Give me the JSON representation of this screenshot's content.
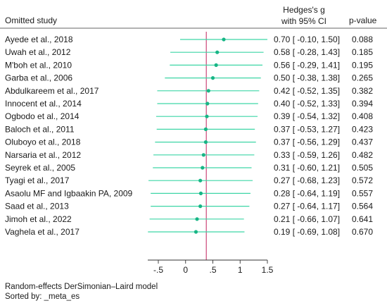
{
  "header": {
    "study_col": "Omitted study",
    "effect_col_line1": "Hedges's g",
    "effect_col_line2": "with 95% CI",
    "p_col": "p-value"
  },
  "footer": {
    "model": "Random-effects DerSimonian–Laird model",
    "sort": "Sorted by: _meta_es"
  },
  "colors": {
    "ci": "#3dd6a6",
    "point": "#17b585",
    "ref_line": "#cc4477",
    "axis": "#333333"
  },
  "chart_data": {
    "type": "forest",
    "title": "",
    "overall_line": 0.38,
    "xlim": [
      -0.7,
      1.5
    ],
    "xticks": [
      -0.5,
      0,
      0.5,
      1,
      1.5
    ],
    "xtick_labels": [
      "-.5",
      "0",
      ".5",
      "1",
      "1.5"
    ],
    "studies": [
      {
        "name": "Ayede et al., 2018",
        "es": 0.7,
        "lo": -0.1,
        "hi": 1.5,
        "text": "0.70 [ -0.10, 1.50]",
        "p": "0.088"
      },
      {
        "name": "Uwah et al., 2012",
        "es": 0.58,
        "lo": -0.28,
        "hi": 1.43,
        "text": "0.58 [ -0.28, 1.43]",
        "p": "0.185"
      },
      {
        "name": "M'boh et al., 2010",
        "es": 0.56,
        "lo": -0.29,
        "hi": 1.41,
        "text": "0.56 [ -0.29, 1.41]",
        "p": "0.195"
      },
      {
        "name": "Garba et al., 2006",
        "es": 0.5,
        "lo": -0.38,
        "hi": 1.38,
        "text": "0.50 [ -0.38, 1.38]",
        "p": "0.265"
      },
      {
        "name": "Abdulkareem et al., 2017",
        "es": 0.42,
        "lo": -0.52,
        "hi": 1.35,
        "text": "0.42 [ -0.52, 1.35]",
        "p": "0.382"
      },
      {
        "name": "Innocent et al., 2014",
        "es": 0.4,
        "lo": -0.52,
        "hi": 1.33,
        "text": "0.40 [ -0.52, 1.33]",
        "p": "0.394"
      },
      {
        "name": "Ogbodo et al., 2014",
        "es": 0.39,
        "lo": -0.54,
        "hi": 1.32,
        "text": "0.39 [ -0.54, 1.32]",
        "p": "0.408"
      },
      {
        "name": "Baloch et al., 2011",
        "es": 0.37,
        "lo": -0.53,
        "hi": 1.27,
        "text": "0.37 [ -0.53, 1.27]",
        "p": "0.423"
      },
      {
        "name": "Oluboyo et al., 2018",
        "es": 0.37,
        "lo": -0.56,
        "hi": 1.29,
        "text": "0.37 [ -0.56, 1.29]",
        "p": "0.437"
      },
      {
        "name": "Narsaria et al., 2012",
        "es": 0.33,
        "lo": -0.59,
        "hi": 1.26,
        "text": "0.33 [ -0.59, 1.26]",
        "p": "0.482"
      },
      {
        "name": "Seyrek et al., 2005",
        "es": 0.31,
        "lo": -0.6,
        "hi": 1.21,
        "text": "0.31 [ -0.60, 1.21]",
        "p": "0.505"
      },
      {
        "name": "Tyagi et al., 2017",
        "es": 0.27,
        "lo": -0.68,
        "hi": 1.23,
        "text": "0.27 [ -0.68, 1.23]",
        "p": "0.572"
      },
      {
        "name": "Asaolu MF and Igbaakin PA, 2009",
        "es": 0.28,
        "lo": -0.64,
        "hi": 1.19,
        "text": "0.28 [ -0.64, 1.19]",
        "p": "0.557"
      },
      {
        "name": "Saad et al., 2013",
        "es": 0.27,
        "lo": -0.64,
        "hi": 1.17,
        "text": "0.27 [ -0.64, 1.17]",
        "p": "0.564"
      },
      {
        "name": "Jimoh et al., 2022",
        "es": 0.21,
        "lo": -0.66,
        "hi": 1.07,
        "text": "0.21 [ -0.66, 1.07]",
        "p": "0.641"
      },
      {
        "name": "Vaghela et al., 2017",
        "es": 0.19,
        "lo": -0.69,
        "hi": 1.08,
        "text": "0.19 [ -0.69, 1.08]",
        "p": "0.670"
      }
    ]
  }
}
